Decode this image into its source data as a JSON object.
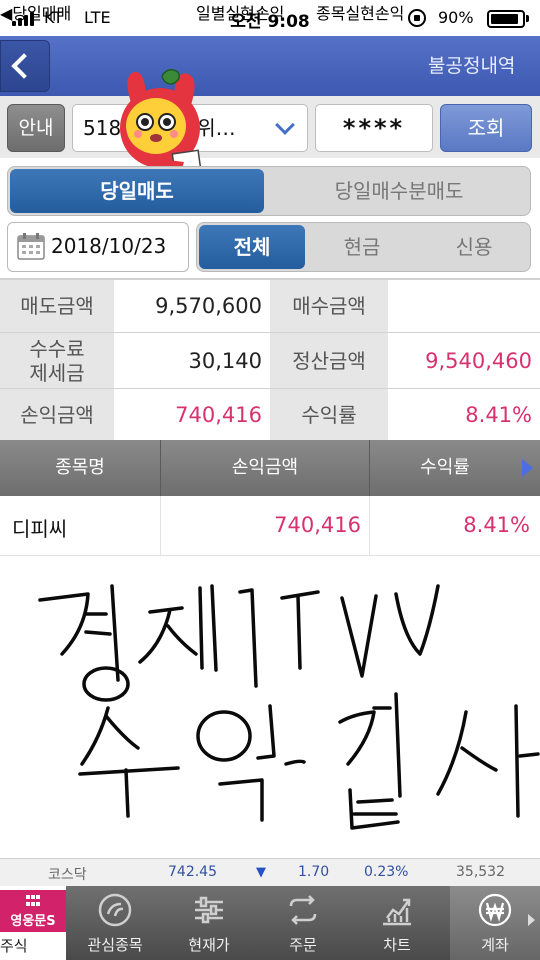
{
  "status_bar": {
    "carrier": "KT",
    "network": "LTE",
    "time": "오전 9:08",
    "battery_percent": "90%",
    "battery_level": 0.9
  },
  "header": {
    "tabs": [
      {
        "label": "당일매매",
        "active": true
      },
      {
        "label": "일별실현손익",
        "active": false
      },
      {
        "label": "종목실현손익",
        "active": false
      },
      {
        "label": "불공정내역",
        "active": false
      }
    ]
  },
  "account_row": {
    "guide_label": "안내",
    "account_value": "518",
    "account_suffix": "위…",
    "password_value": "****",
    "search_label": "조회"
  },
  "segment_trade": {
    "options": [
      "당일매도",
      "당일매수분매도"
    ],
    "selected": "당일매도"
  },
  "date_filter": {
    "date": "2018/10/23",
    "options": [
      "전체",
      "현금",
      "신용"
    ],
    "selected": "전체"
  },
  "summary": {
    "sell_amount_label": "매도금액",
    "sell_amount": "9,570,600",
    "buy_amount_label": "매수금액",
    "buy_amount": "",
    "fee_tax_label": "수수료\n제세금",
    "fee_tax": "30,140",
    "settle_amount_label": "정산금액",
    "settle_amount": "9,540,460",
    "profit_label": "손익금액",
    "profit": "740,416",
    "rate_label": "수익률",
    "rate": "8.41%"
  },
  "list": {
    "columns": [
      "종목명",
      "손익금액",
      "수익률"
    ],
    "rows": [
      {
        "name": "디피씨",
        "profit": "740,416",
        "rate": "8.41%"
      }
    ]
  },
  "handwriting": {
    "line1": "경제TV",
    "line2": "수익감사"
  },
  "ticker": {
    "index_name": "코스닥",
    "value": "742.45",
    "direction": "down",
    "change": "1.70",
    "change_pct": "0.23%",
    "volume": "35,532"
  },
  "nav": {
    "brand": "영웅문S",
    "items": [
      {
        "label": "주식",
        "icon": "grid-icon"
      },
      {
        "label": "관심종목",
        "icon": "star-circle-icon"
      },
      {
        "label": "현재가",
        "icon": "sliders-icon"
      },
      {
        "label": "주문",
        "icon": "swap-icon"
      },
      {
        "label": "차트",
        "icon": "chart-icon"
      },
      {
        "label": "계좌",
        "icon": "won-icon",
        "active": true
      }
    ]
  },
  "colors": {
    "header_blue": "#4664bc",
    "segment_blue": "#2f6aab",
    "profit_red": "#d8316f",
    "brand_pink": "#d2226a"
  }
}
